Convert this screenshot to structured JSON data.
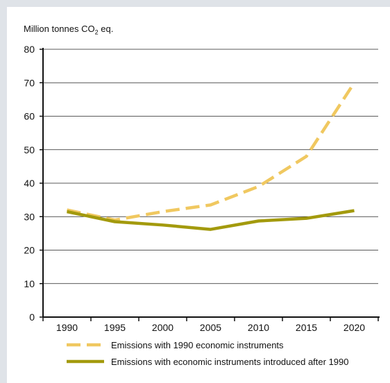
{
  "chart_data": {
    "type": "line",
    "ylabel_prefix": "Million tonnes CO",
    "ylabel_sub": "2",
    "ylabel_suffix": " eq.",
    "x": [
      1990,
      1995,
      2000,
      2005,
      2010,
      2015,
      2020
    ],
    "x_tick_labels": [
      "1990",
      "1995",
      "2000",
      "2005",
      "2010",
      "2015",
      "2020"
    ],
    "ylim": [
      0,
      80
    ],
    "y_ticks": [
      0,
      10,
      20,
      30,
      40,
      50,
      60,
      70,
      80
    ],
    "grid": "horizontal",
    "legend_position": "bottom",
    "series": [
      {
        "name": "Emissions with 1990 economic instruments",
        "style": "dashed",
        "color": "#f0c860",
        "values": [
          32,
          29,
          31.5,
          33.5,
          39,
          48,
          70
        ]
      },
      {
        "name": "Emissions with economic instruments introduced after 1990",
        "style": "solid",
        "color": "#a39a0d",
        "values": [
          31.5,
          28.5,
          27.5,
          26.2,
          28.7,
          29.5,
          31.8
        ]
      }
    ]
  }
}
